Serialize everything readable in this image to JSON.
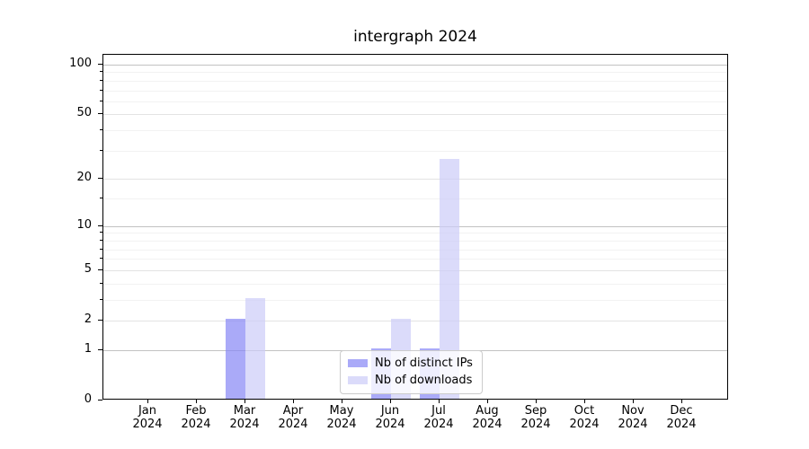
{
  "figure": {
    "title": "intergraph 2024"
  },
  "chart_data": {
    "type": "bar",
    "title": "intergraph 2024",
    "categories": [
      "Jan",
      "Feb",
      "Mar",
      "Apr",
      "May",
      "Jun",
      "Jul",
      "Aug",
      "Sep",
      "Oct",
      "Nov",
      "Dec"
    ],
    "x_sublabel": "2024",
    "series": [
      {
        "name": "Nb of distinct IPs",
        "color": "rgba(134,134,245,0.7)",
        "values": [
          0,
          0,
          2,
          0,
          0,
          1,
          1,
          0,
          0,
          0,
          0,
          0
        ]
      },
      {
        "name": "Nb of downloads",
        "color": "rgba(204,204,248,0.7)",
        "values": [
          0,
          0,
          3,
          0,
          0,
          2,
          26,
          0,
          0,
          0,
          0,
          0
        ]
      }
    ],
    "y_axis": {
      "scale": "log1p",
      "ticks": [
        0,
        1,
        2,
        5,
        10,
        20,
        50,
        100
      ],
      "minor_gridlines": [
        3,
        4,
        6,
        7,
        8,
        9,
        15,
        30,
        40,
        60,
        70,
        80,
        90
      ],
      "range": [
        0,
        115
      ]
    },
    "legend": {
      "position": "lower center"
    },
    "grid": true,
    "background": "#ffffff",
    "colors": {
      "distinct_ips": "#aaaaf8",
      "downloads": "#dbdbfa",
      "axis": "#000000"
    }
  }
}
